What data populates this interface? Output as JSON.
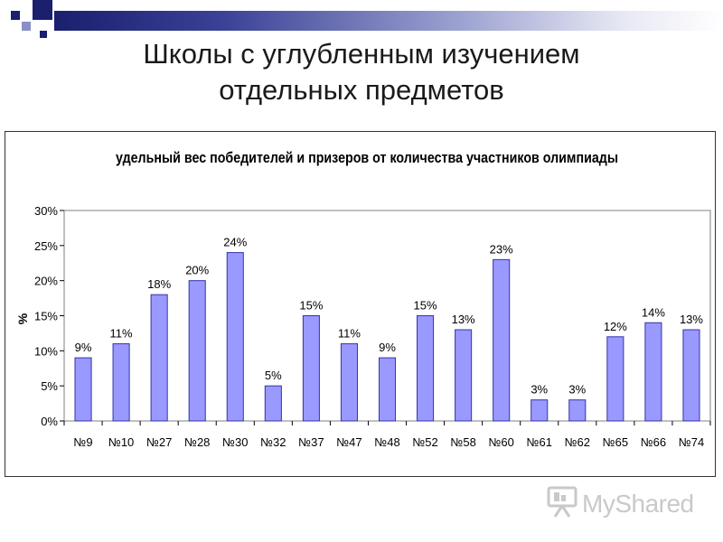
{
  "slide": {
    "title_line1": "Школы с углубленным изучением",
    "title_line2": "отдельных предметов"
  },
  "watermark": {
    "text": "MyShared",
    "icon": "presentation-board-icon"
  },
  "colors": {
    "bar_fill": "#9999ff",
    "bar_stroke": "#3333aa",
    "title_bar_dark": "#1a1f6e"
  },
  "chart_data": {
    "type": "bar",
    "title": "удельный вес победителей и призеров от количества участников олимпиады",
    "ylabel": "%",
    "xlabel": "",
    "categories": [
      "№9",
      "№10",
      "№27",
      "№28",
      "№30",
      "№32",
      "№37",
      "№47",
      "№48",
      "№52",
      "№58",
      "№60",
      "№61",
      "№62",
      "№65",
      "№66",
      "№74"
    ],
    "values": [
      9,
      11,
      18,
      20,
      24,
      5,
      15,
      11,
      9,
      15,
      13,
      23,
      3,
      3,
      12,
      14,
      13
    ],
    "data_labels": [
      "9%",
      "11%",
      "18%",
      "20%",
      "24%",
      "5%",
      "15%",
      "11%",
      "9%",
      "15%",
      "13%",
      "23%",
      "3%",
      "3%",
      "12%",
      "14%",
      "13%"
    ],
    "yticks": [
      0,
      5,
      10,
      15,
      20,
      25,
      30
    ],
    "ytick_labels": [
      "0%",
      "5%",
      "10%",
      "15%",
      "20%",
      "25%",
      "30%"
    ],
    "ylim": [
      0,
      30
    ],
    "grid": false,
    "legend": "none"
  }
}
